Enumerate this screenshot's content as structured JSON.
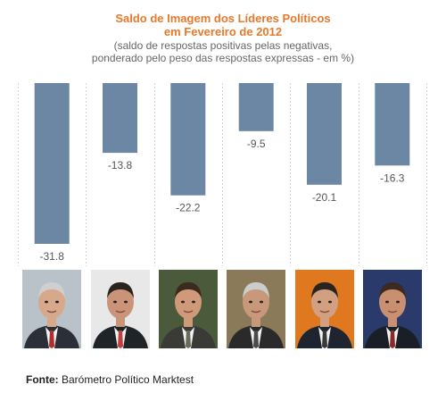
{
  "chart_data": {
    "type": "bar",
    "title_line1": "Saldo de Imagem dos Líderes Políticos",
    "title_line2": "em Fevereiro de 2012",
    "subtitle_line1": "(saldo de respostas positivas pelas negativas,",
    "subtitle_line2": "ponderado pelo peso das respostas expressas - em %)",
    "categories": [
      "",
      "",
      "",
      "",
      "",
      ""
    ],
    "values": [
      -31.8,
      -13.8,
      -22.2,
      -9.5,
      -20.1,
      -16.3
    ],
    "value_labels": [
      "-31.8",
      "-13.8",
      "-22.2",
      "-9.5",
      "-20.1",
      "-16.3"
    ],
    "ylim": [
      -35,
      0
    ],
    "grid": true,
    "legend": "none",
    "bar_color": "#6c87a3"
  },
  "photos": [
    {
      "background": "#b8c2c8",
      "suit": "#2a2f38",
      "tie": "#b03030",
      "hair": "#cfcfcf",
      "skin": "#d8a88a"
    },
    {
      "background": "#e8e8e8",
      "suit": "#1f2428",
      "tie": "#c04040",
      "hair": "#2a2420",
      "skin": "#c99478"
    },
    {
      "background": "#4a5a3a",
      "suit": "#3a3a36",
      "tie": "#6a6a5a",
      "hair": "#3a2a20",
      "skin": "#d09a7a"
    },
    {
      "background": "#8a7a5a",
      "suit": "#2a2a2a",
      "tie": "#4a4a4a",
      "hair": "#cccccc",
      "skin": "#c8987a"
    },
    {
      "background": "#e07820",
      "suit": "#1e2430",
      "tie": "#3a3a3a",
      "hair": "#2a2420",
      "skin": "#d0a080"
    },
    {
      "background": "#2a3a6a",
      "suit": "#1a1e26",
      "tie": "#8a2a2a",
      "hair": "#3a2a22",
      "skin": "#c89070"
    }
  ],
  "footer": {
    "label": "Fonte:",
    "text": " Barómetro Político Marktest"
  }
}
